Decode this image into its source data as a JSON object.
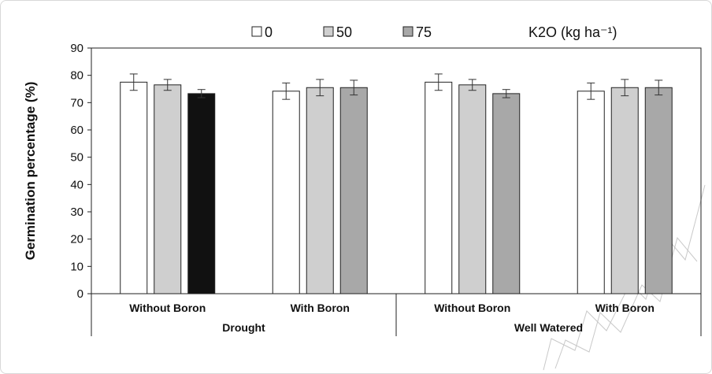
{
  "chart_data": {
    "type": "bar",
    "ylabel": "Germination percentage (%)",
    "ylim": [
      0,
      90
    ],
    "yticks": [
      "0",
      "10",
      "20",
      "30",
      "40",
      "50",
      "60",
      "70",
      "80",
      "90"
    ],
    "categories": [
      "Without Boron",
      "With Boron",
      "Without Boron",
      "With Boron"
    ],
    "groups": [
      "Drought",
      "Well Watered"
    ],
    "legend_title": "K2O (kg ha⁻¹)",
    "legend_placement": "top",
    "grid": false,
    "series": [
      {
        "name": "0",
        "values": [
          77.5,
          74.2,
          77.5,
          74.2
        ],
        "errors": [
          3.0,
          3.0,
          3.0,
          3.0
        ]
      },
      {
        "name": "50",
        "values": [
          76.5,
          75.5,
          76.5,
          75.5
        ],
        "errors": [
          2.0,
          3.0,
          2.0,
          3.0
        ]
      },
      {
        "name": "75",
        "values": [
          73.3,
          75.5,
          73.3,
          75.5
        ],
        "errors": [
          1.5,
          2.7,
          1.5,
          2.7
        ]
      }
    ],
    "colors": {
      "series": [
        "#ffffff",
        "#cfcfcf",
        "#a8a8a8"
      ],
      "highlight": "#111111",
      "stroke": "#222222"
    }
  }
}
